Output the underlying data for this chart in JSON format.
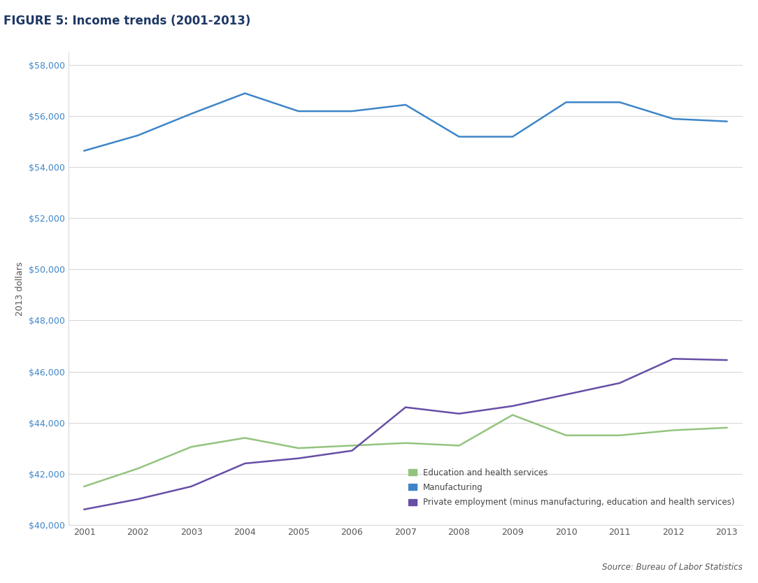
{
  "years": [
    2001,
    2002,
    2003,
    2004,
    2005,
    2006,
    2007,
    2008,
    2009,
    2010,
    2011,
    2012,
    2013
  ],
  "manufacturing": [
    54650,
    55250,
    56100,
    56900,
    56200,
    56200,
    56450,
    55200,
    55200,
    56550,
    56550,
    55900,
    55800
  ],
  "education_health": [
    41500,
    42200,
    43050,
    43400,
    43000,
    43100,
    43200,
    43100,
    44300,
    43500,
    43500,
    43700,
    43800
  ],
  "private_employment": [
    40600,
    41000,
    41500,
    42400,
    42600,
    42900,
    44600,
    44350,
    44650,
    45100,
    45550,
    46500,
    46450
  ],
  "manufacturing_color": "#3D85C8",
  "education_color": "#93C47D",
  "private_color": "#674EA7",
  "title": "FIGURE 5: Income trends (2001-2013)",
  "ylabel": "2013 dollars",
  "source_text": "Source: Bureau of Labor Statistics",
  "ylim_min": 40000,
  "ylim_max": 58500,
  "yticks": [
    40000,
    42000,
    44000,
    46000,
    48000,
    50000,
    52000,
    54000,
    56000,
    58000
  ],
  "legend_labels": [
    "Education and health services",
    "Manufacturing",
    "Private employment (minus manufacturing, education and health services)"
  ],
  "title_color": "#1F3864",
  "ytick_color": "#3D85C8",
  "xtick_color": "#555555",
  "ylabel_color": "#555555",
  "grid_color": "#D9D9D9",
  "spine_color": "#D9D9D9"
}
